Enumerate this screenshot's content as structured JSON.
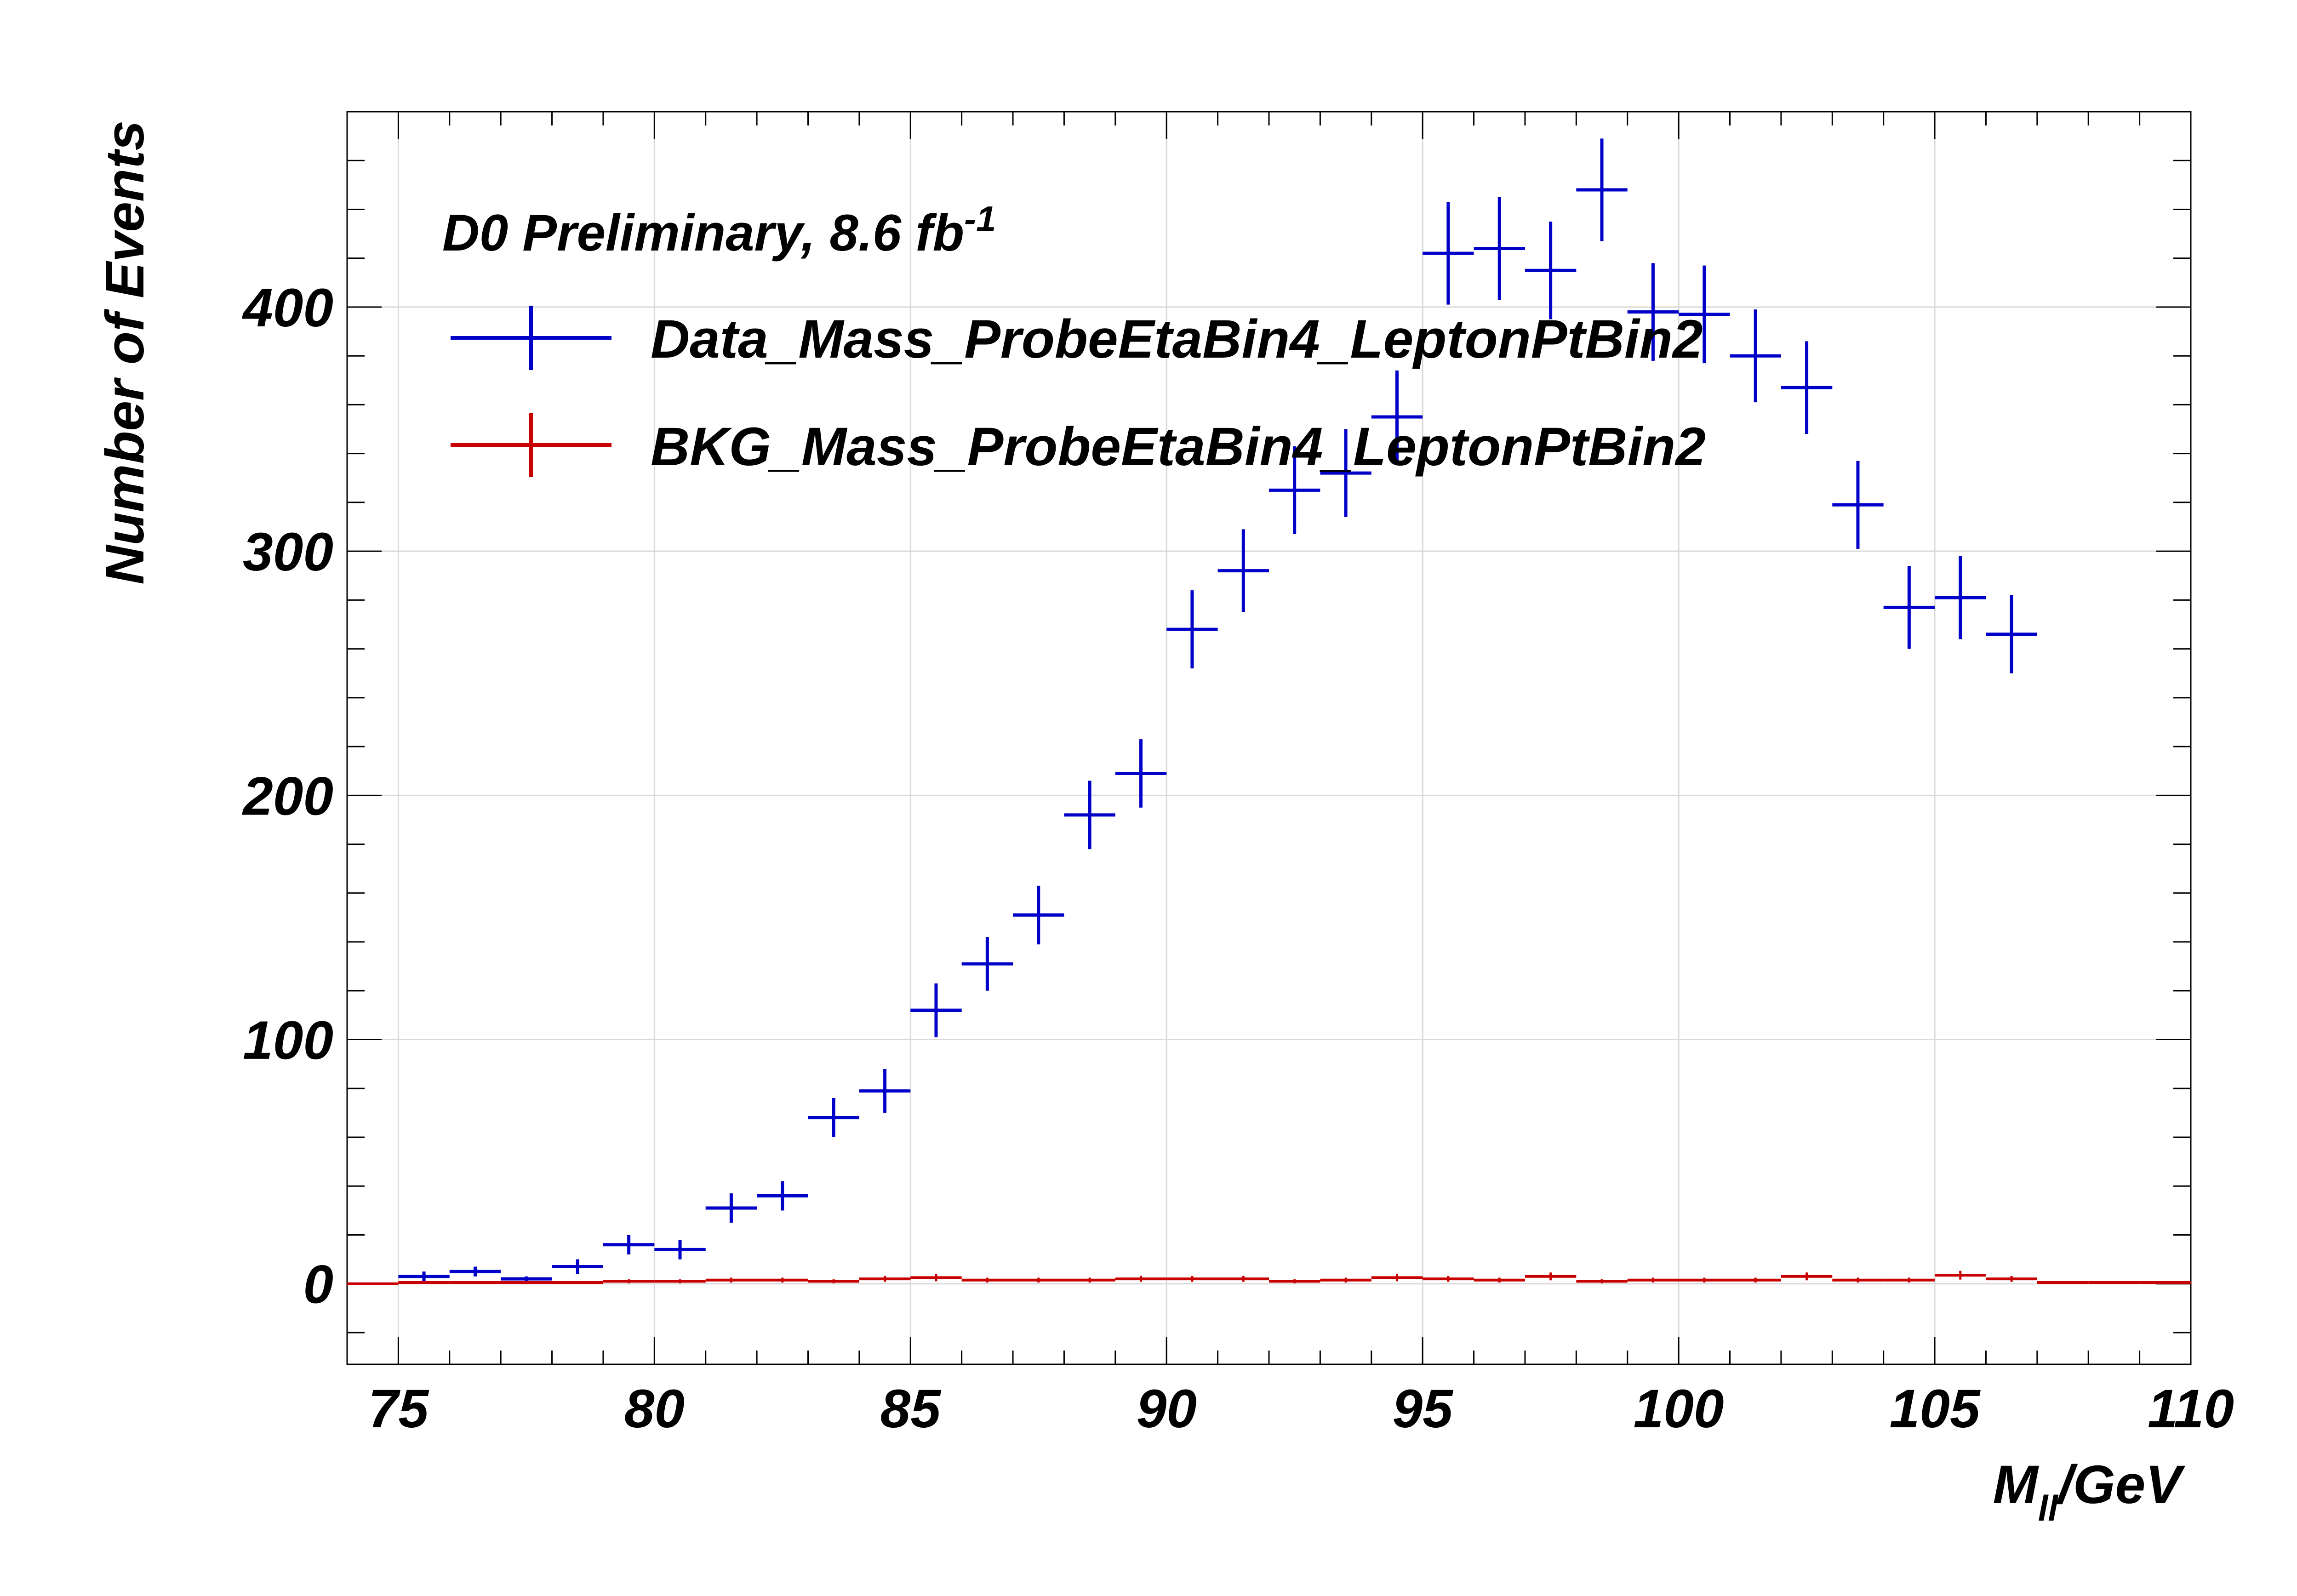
{
  "chart_data": {
    "type": "scatter",
    "style": "histogram-with-error-bars",
    "header": {
      "text": "D0 Preliminary, 8.6 fb",
      "superscript": "-1"
    },
    "xlabel": {
      "main": "M",
      "subscript": "ll",
      "rest": "/GeV"
    },
    "ylabel": "Number of Events",
    "xlim": [
      74,
      110
    ],
    "ylim": [
      -33,
      480
    ],
    "x_ticks": [
      75,
      80,
      85,
      90,
      95,
      100,
      105,
      110
    ],
    "x_tick_labels": [
      "75",
      "80",
      "85",
      "90",
      "95",
      "100",
      "105",
      "110"
    ],
    "y_ticks": [
      0,
      100,
      200,
      300,
      400
    ],
    "y_tick_labels": [
      "0",
      "100",
      "200",
      "300",
      "400"
    ],
    "grid": true,
    "legend_position": "top-left",
    "bin_width": 1,
    "series": [
      {
        "name": "Data_Mass_ProbeEtaBin4_LeptonPtBin2",
        "color": "#0000c8",
        "x": [
          75.5,
          76.5,
          77.5,
          78.5,
          79.5,
          80.5,
          81.5,
          82.5,
          83.5,
          84.5,
          85.5,
          86.5,
          87.5,
          88.5,
          89.5,
          90.5,
          91.5,
          92.5,
          93.5,
          94.5,
          95.5,
          96.5,
          97.5,
          98.5,
          99.5,
          100.5,
          101.5,
          102.5,
          103.5,
          104.5,
          105.5,
          106.5
        ],
        "y": [
          3,
          5,
          2,
          7,
          16,
          14,
          31,
          36,
          68,
          79,
          112,
          131,
          151,
          192,
          209,
          268,
          292,
          325,
          332,
          355,
          422,
          424,
          415,
          448,
          398,
          397,
          380,
          367,
          319,
          277,
          281,
          266
        ],
        "yerr": [
          2,
          2,
          1,
          3,
          4,
          4,
          6,
          6,
          8,
          9,
          11,
          11,
          12,
          14,
          14,
          16,
          17,
          18,
          18,
          19,
          21,
          21,
          20,
          21,
          20,
          20,
          19,
          19,
          18,
          17,
          17,
          16
        ]
      },
      {
        "name": "BKG_Mass_ProbeEtaBin4_LeptonPtBin2",
        "color": "#c80000",
        "x": [
          74.5,
          75.5,
          76.5,
          77.5,
          78.5,
          79.5,
          80.5,
          81.5,
          82.5,
          83.5,
          84.5,
          85.5,
          86.5,
          87.5,
          88.5,
          89.5,
          90.5,
          91.5,
          92.5,
          93.5,
          94.5,
          95.5,
          96.5,
          97.5,
          98.5,
          99.5,
          100.5,
          101.5,
          102.5,
          103.5,
          104.5,
          105.5,
          106.5,
          107.5,
          108.5,
          109.5
        ],
        "y": [
          0,
          0.5,
          0.5,
          0.5,
          0.5,
          1,
          1,
          1.5,
          1.5,
          1,
          2,
          2.5,
          1.5,
          1.5,
          1.5,
          2,
          2,
          2,
          1,
          1.5,
          2.5,
          2,
          1.5,
          3,
          1,
          1.5,
          1.5,
          1.5,
          3,
          1.5,
          1.5,
          3.5,
          2,
          0.5,
          0.5,
          0.5
        ],
        "yerr": [
          0,
          0.5,
          0.5,
          0.5,
          0.5,
          0.8,
          0.8,
          1,
          1,
          0.8,
          1.2,
          1.5,
          1,
          1,
          1,
          1.2,
          1.2,
          1.2,
          0.8,
          1,
          1.5,
          1.2,
          1,
          1.6,
          0.8,
          1,
          1,
          1,
          1.6,
          1,
          1,
          1.8,
          1.2,
          0.5,
          0.5,
          0.5
        ]
      }
    ]
  }
}
